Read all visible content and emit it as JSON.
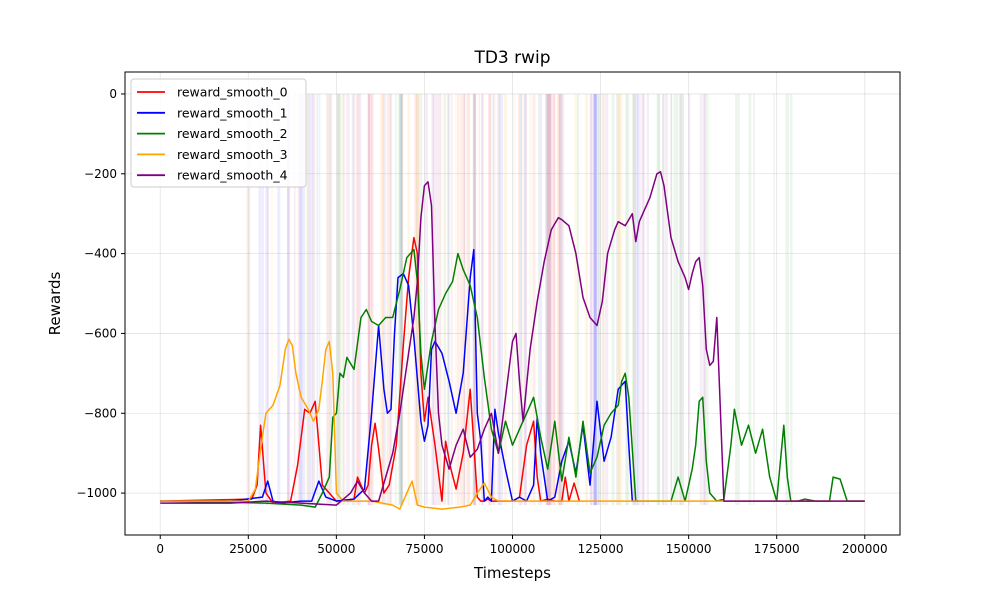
{
  "chart_data": {
    "type": "line",
    "title": "TD3 rwip",
    "xlabel": "Timesteps",
    "ylabel": "Rewards",
    "xlim": [
      -10000,
      210000
    ],
    "ylim": [
      -1105,
      55
    ],
    "xticks": [
      0,
      25000,
      50000,
      75000,
      100000,
      125000,
      150000,
      175000,
      200000
    ],
    "yticks": [
      0,
      -200,
      -400,
      -600,
      -800,
      -1000
    ],
    "grid": true,
    "legend_position": "top-left",
    "series": [
      {
        "name": "reward_smooth_0",
        "color": "#ff0000",
        "x": [
          0,
          26000,
          27500,
          28500,
          30000,
          32000,
          37000,
          39000,
          41000,
          42500,
          44000,
          46000,
          50000,
          55000,
          56000,
          58000,
          59000,
          60000,
          61000,
          62000,
          63500,
          65000,
          67000,
          69000,
          70500,
          72000,
          73000,
          74000,
          75000,
          76000,
          78000,
          80000,
          81000,
          82500,
          84000,
          86000,
          88000,
          90000,
          91000,
          92000,
          93000,
          94000,
          96000,
          98000,
          100000,
          102000,
          104000,
          106000,
          107000,
          108000,
          110000,
          112000,
          114000,
          115000,
          116000,
          117500,
          119000
        ],
        "y": [
          -1020,
          -1015,
          -980,
          -830,
          -1000,
          -1025,
          -1020,
          -930,
          -790,
          -800,
          -770,
          -980,
          -1020,
          -1015,
          -960,
          -1000,
          -980,
          -880,
          -825,
          -890,
          -1000,
          -980,
          -880,
          -630,
          -460,
          -360,
          -400,
          -700,
          -820,
          -760,
          -880,
          -1020,
          -870,
          -940,
          -990,
          -900,
          -740,
          -1010,
          -1020,
          -1020,
          -1015,
          -1020,
          -1020,
          -1020,
          -1020,
          -1010,
          -880,
          -820,
          -960,
          -1020,
          -1015,
          -1020,
          -1020,
          -960,
          -1020,
          -975,
          -1020
        ]
      },
      {
        "name": "reward_smooth_1",
        "color": "#0000ff",
        "x": [
          0,
          20000,
          29000,
          30500,
          32000,
          34000,
          40000,
          43000,
          45000,
          47000,
          50000,
          55000,
          58000,
          60000,
          62000,
          63500,
          64500,
          65500,
          66500,
          67500,
          69000,
          70500,
          72000,
          74000,
          75000,
          76000,
          77000,
          78000,
          80000,
          82000,
          84000,
          86000,
          87000,
          88000,
          89000,
          90000,
          91000,
          92000,
          93000,
          94000,
          95000,
          96000,
          98000,
          100000,
          102000,
          104000,
          106000,
          107000,
          108000,
          110000,
          112000,
          114000,
          116000,
          118000,
          120000,
          122000,
          124000,
          126000,
          128000,
          130000,
          132000,
          133000,
          134000,
          136000
        ],
        "y": [
          -1020,
          -1020,
          -1010,
          -970,
          -1020,
          -1025,
          -1020,
          -1020,
          -970,
          -1010,
          -1020,
          -1015,
          -990,
          -800,
          -580,
          -740,
          -800,
          -790,
          -600,
          -460,
          -450,
          -480,
          -610,
          -820,
          -870,
          -830,
          -640,
          -620,
          -650,
          -720,
          -800,
          -700,
          -580,
          -460,
          -390,
          -800,
          -870,
          -1020,
          -1010,
          -1020,
          -790,
          -850,
          -940,
          -1020,
          -1010,
          -1020,
          -980,
          -810,
          -900,
          -1020,
          -1010,
          -920,
          -870,
          -950,
          -830,
          -980,
          -770,
          -920,
          -860,
          -740,
          -720,
          -880,
          -1020,
          -1020
        ]
      },
      {
        "name": "reward_smooth_2",
        "color": "#008000",
        "x": [
          0,
          30000,
          40000,
          44000,
          46000,
          48000,
          49000,
          50000,
          51000,
          52000,
          53000,
          55000,
          57000,
          58500,
          60000,
          62000,
          64000,
          66000,
          68000,
          70000,
          72000,
          73000,
          74000,
          75000,
          77000,
          79000,
          81000,
          83000,
          84500,
          86000,
          88000,
          90000,
          92000,
          94000,
          96000,
          98000,
          100000,
          102000,
          104000,
          106000,
          108000,
          110000,
          112000,
          114000,
          116000,
          118000,
          120000,
          122000,
          124000,
          126000,
          128000,
          130000,
          131000,
          132000,
          133000,
          135000,
          140000,
          145000,
          147000,
          149000,
          151000,
          152000,
          153000,
          154000,
          155000,
          156000,
          158000,
          160000,
          162000,
          163000,
          165000,
          167000,
          169000,
          171000,
          173000,
          175000,
          177000,
          178000,
          179000,
          181000,
          183000,
          186000,
          190000,
          191000,
          193000,
          195000,
          197000,
          200000
        ],
        "y": [
          -1020,
          -1025,
          -1030,
          -1035,
          -1000,
          -960,
          -810,
          -800,
          -700,
          -710,
          -660,
          -690,
          -560,
          -540,
          -570,
          -580,
          -560,
          -560,
          -490,
          -410,
          -390,
          -470,
          -650,
          -740,
          -620,
          -540,
          -500,
          -470,
          -400,
          -440,
          -480,
          -560,
          -710,
          -840,
          -900,
          -820,
          -880,
          -840,
          -800,
          -760,
          -860,
          -940,
          -820,
          -970,
          -860,
          -960,
          -820,
          -950,
          -910,
          -830,
          -800,
          -780,
          -720,
          -700,
          -760,
          -1020,
          -1020,
          -1020,
          -960,
          -1020,
          -940,
          -880,
          -770,
          -760,
          -920,
          -1000,
          -1020,
          -1015,
          -880,
          -790,
          -880,
          -830,
          -900,
          -840,
          -960,
          -1020,
          -830,
          -960,
          -1020,
          -1020,
          -1015,
          -1020,
          -1020,
          -960,
          -965,
          -1020,
          -1020,
          -1020
        ]
      },
      {
        "name": "reward_smooth_3",
        "color": "#ffa500",
        "x": [
          0,
          25000,
          27000,
          28500,
          30000,
          32000,
          34000,
          35500,
          36500,
          37500,
          38500,
          40000,
          42000,
          43500,
          45000,
          46000,
          47000,
          48000,
          49000,
          50000,
          52000,
          56000,
          60000,
          63000,
          66000,
          68000,
          70000,
          71500,
          73000,
          75000,
          80000,
          85000,
          88000,
          90000,
          92000,
          94000,
          96000,
          100000,
          110000,
          130000,
          150000,
          175000,
          200000
        ],
        "y": [
          -1020,
          -1020,
          -990,
          -890,
          -800,
          -780,
          -730,
          -640,
          -615,
          -630,
          -700,
          -760,
          -790,
          -820,
          -790,
          -720,
          -640,
          -620,
          -700,
          -1000,
          -1020,
          -1020,
          -1020,
          -1025,
          -1030,
          -1040,
          -1000,
          -970,
          -1030,
          -1035,
          -1040,
          -1035,
          -1030,
          -1000,
          -975,
          -1010,
          -1020,
          -1020,
          -1020,
          -1020,
          -1020,
          -1020,
          -1020
        ]
      },
      {
        "name": "reward_smooth_4",
        "color": "#800080",
        "x": [
          0,
          20000,
          30000,
          40000,
          50000,
          54000,
          56000,
          58000,
          60000,
          62000,
          64000,
          66000,
          68000,
          70000,
          72000,
          73000,
          74000,
          75000,
          76000,
          77000,
          78000,
          79000,
          80000,
          82000,
          84000,
          86000,
          88000,
          90000,
          92000,
          94000,
          96000,
          98000,
          100000,
          101000,
          102000,
          103000,
          105000,
          107000,
          109000,
          111000,
          113000,
          114000,
          116000,
          118000,
          120000,
          122000,
          124000,
          125500,
          126000,
          127000,
          128000,
          129000,
          130000,
          132000,
          134000,
          135000,
          136000,
          137000,
          139000,
          141000,
          142000,
          143000,
          145000,
          147000,
          149000,
          150000,
          151000,
          152000,
          153000,
          154000,
          155000,
          156000,
          157000,
          158000,
          160000,
          165000,
          170000,
          180000,
          200000
        ],
        "y": [
          -1025,
          -1025,
          -1020,
          -1025,
          -1030,
          -1000,
          -970,
          -1000,
          -1020,
          -1020,
          -960,
          -900,
          -800,
          -680,
          -560,
          -470,
          -310,
          -230,
          -220,
          -280,
          -580,
          -800,
          -880,
          -940,
          -880,
          -840,
          -910,
          -890,
          -840,
          -800,
          -900,
          -760,
          -620,
          -600,
          -720,
          -820,
          -640,
          -520,
          -420,
          -340,
          -310,
          -315,
          -330,
          -400,
          -510,
          -560,
          -580,
          -520,
          -480,
          -400,
          -370,
          -340,
          -320,
          -330,
          -300,
          -370,
          -320,
          -300,
          -260,
          -200,
          -195,
          -230,
          -360,
          -420,
          -460,
          -490,
          -450,
          -420,
          -410,
          -480,
          -640,
          -680,
          -670,
          -560,
          -1020,
          -1020,
          -1020,
          -1020,
          -1020
        ]
      }
    ]
  }
}
